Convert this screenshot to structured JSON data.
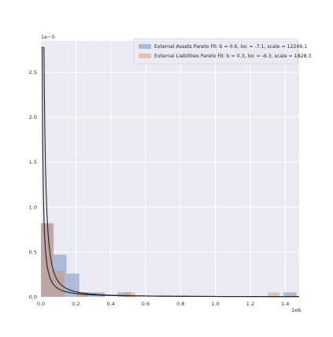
{
  "chart_data": {
    "type": "histogram",
    "title": "",
    "xlabel": "",
    "ylabel": "",
    "x_multiplier": "1e6",
    "y_multiplier": "1e−5",
    "xlim": [
      0,
      1.48
    ],
    "ylim": [
      0,
      2.85
    ],
    "x_ticks": [
      "0.0",
      "0.2",
      "0.4",
      "0.6",
      "0.8",
      "1.0",
      "1.2",
      "1.4"
    ],
    "y_ticks": [
      "0.0",
      "0.5",
      "1.0",
      "1.5",
      "2.0",
      "2.5"
    ],
    "grid": true,
    "legend_position": "top-right",
    "colors": {
      "background": "#eaeaf2",
      "grid": "#ffffff",
      "assets": "#4c72b0",
      "liabilities": "#dd8452",
      "fit_line": "#222222"
    },
    "series": [
      {
        "name": "External Assets Pareto Fit: b = 0.6, loc = -7.1, scale = 12249.1",
        "color": "#4c72b0",
        "bin_width": 0.0732,
        "bins": [
          {
            "x0": 0.0,
            "height": 0.82
          },
          {
            "x0": 0.0732,
            "height": 0.47
          },
          {
            "x0": 0.1464,
            "height": 0.26
          },
          {
            "x0": 0.2196,
            "height": 0.05
          },
          {
            "x0": 0.2928,
            "height": 0.05
          },
          {
            "x0": 0.366,
            "height": 0.0
          },
          {
            "x0": 0.4392,
            "height": 0.05
          },
          {
            "x0": 0.5124,
            "height": 0.0
          },
          {
            "x0": 0.5856,
            "height": 0.0
          },
          {
            "x0": 1.3908,
            "height": 0.05
          }
        ],
        "fit_curve": {
          "b": 0.6,
          "loc": -7.1,
          "scale": 12249.1
        }
      },
      {
        "name": "External Liabilities Pareto Fit: b = 0.3, loc = -6.3, scale = 1828.3",
        "color": "#dd8452",
        "bin_width": 0.0675,
        "bins": [
          {
            "x0": 0.0,
            "height": 0.82
          },
          {
            "x0": 0.0675,
            "height": 0.29
          },
          {
            "x0": 0.135,
            "height": 0.0
          },
          {
            "x0": 0.2025,
            "height": 0.05
          },
          {
            "x0": 0.27,
            "height": 0.0
          },
          {
            "x0": 0.4725,
            "height": 0.05
          },
          {
            "x0": 1.3,
            "height": 0.05
          }
        ],
        "fit_curve": {
          "b": 0.3,
          "loc": -6.3,
          "scale": 1828.3
        }
      }
    ]
  }
}
